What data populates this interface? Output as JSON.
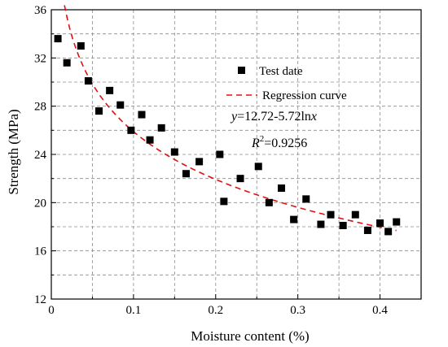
{
  "chart_data": {
    "type": "scatter",
    "xlabel": "Moisture content (%)",
    "ylabel": "Strength (MPa)",
    "xlim": [
      0,
      0.45
    ],
    "ylim": [
      12,
      36
    ],
    "xticks": [
      "0",
      "0.1",
      "0.2",
      "0.3",
      "0.4"
    ],
    "xtick_values": [
      0,
      0.1,
      0.2,
      0.3,
      0.4
    ],
    "yticks": [
      "12",
      "16",
      "20",
      "24",
      "28",
      "32",
      "36"
    ],
    "ytick_values": [
      12,
      16,
      20,
      24,
      28,
      32,
      36
    ],
    "grid": true,
    "legend_position": "top-right",
    "series": [
      {
        "name": "Test date",
        "kind": "scatter",
        "marker": "square",
        "color": "#000000",
        "x": [
          0.008,
          0.019,
          0.036,
          0.045,
          0.058,
          0.071,
          0.084,
          0.097,
          0.11,
          0.12,
          0.134,
          0.15,
          0.164,
          0.18,
          0.205,
          0.21,
          0.23,
          0.252,
          0.265,
          0.28,
          0.295,
          0.31,
          0.328,
          0.34,
          0.355,
          0.37,
          0.385,
          0.4,
          0.41,
          0.42
        ],
        "y": [
          33.6,
          31.6,
          33.0,
          30.1,
          27.6,
          29.3,
          28.1,
          26.0,
          27.3,
          25.2,
          26.2,
          24.2,
          22.4,
          23.4,
          24.0,
          20.1,
          22.0,
          23.0,
          20.0,
          21.2,
          18.6,
          20.3,
          18.2,
          19.0,
          18.1,
          19.0,
          17.7,
          18.3,
          17.6,
          18.4
        ]
      },
      {
        "name": "Regression curve",
        "kind": "line",
        "style": "dashed",
        "color": "#e01010",
        "equation": "y = 12.72 - 5.72 ln x",
        "a": 12.72,
        "b": -5.72,
        "x_range": [
          0.016,
          0.42
        ]
      }
    ],
    "annotations": {
      "equation_italic": "y",
      "equation_rest": "=12.72-5.72ln",
      "equation_var": "x",
      "r2_base": "R",
      "r2_sup": "2",
      "r2_value": "=0.9256"
    }
  }
}
